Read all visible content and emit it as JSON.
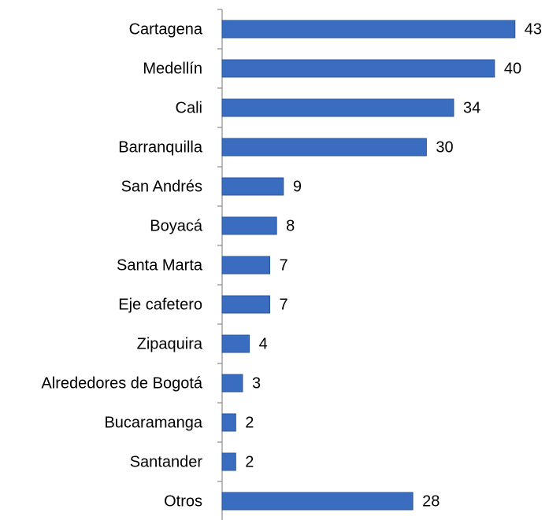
{
  "chart_data": {
    "type": "bar",
    "orientation": "horizontal",
    "categories": [
      "Cartagena",
      "Medellín",
      "Cali",
      "Barranquilla",
      "San Andrés",
      "Boyacá",
      "Santa Marta",
      "Eje cafetero",
      "Zipaquira",
      "Alrededores de Bogotá",
      "Bucaramanga",
      "Santander",
      "Otros"
    ],
    "values": [
      43,
      40,
      34,
      30,
      9,
      8,
      7,
      7,
      4,
      3,
      2,
      2,
      28
    ],
    "color": "#3a6cc0",
    "xlim": [
      0,
      48
    ]
  }
}
